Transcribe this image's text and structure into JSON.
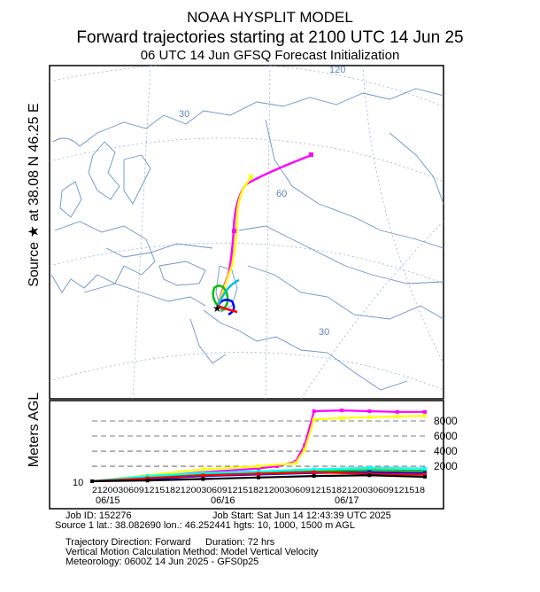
{
  "header": {
    "model": "NOAA HYSPLIT MODEL",
    "title": "Forward trajectories starting at 2100 UTC 14 Jun 25",
    "subtitle": "06 UTC 14 Jun    GFSQ  Forecast Initialization"
  },
  "side_label": "Source ★ at  38.08 N   46.25 E",
  "map": {
    "grid_labels": [
      "120",
      "30",
      "60",
      "30"
    ],
    "colors": {
      "coast": "#6b93c7",
      "grid": "#9ab3d3",
      "frame": "#000000"
    }
  },
  "chart_data": {
    "type": "line",
    "ylabel": "Meters AGL",
    "y_ticks": [
      "8000",
      "6000",
      "4000",
      "2000"
    ],
    "y_min_label": "10",
    "x_day_labels": [
      "06/15",
      "06/16",
      "06/17"
    ],
    "x_hour_labels": "2120030609121518212003060912151821200306091215182120030609121518",
    "ylim": [
      10,
      10000
    ],
    "x_range_hours": [
      0,
      72
    ],
    "series": [
      {
        "color": "#ff00ff",
        "x": [
          0,
          12,
          24,
          36,
          40,
          44,
          46,
          48,
          54,
          60,
          66,
          72
        ],
        "y": [
          10,
          600,
          1200,
          1700,
          2000,
          2600,
          4800,
          9300,
          9400,
          9300,
          9200,
          9200
        ]
      },
      {
        "color": "#ffff00",
        "x": [
          0,
          12,
          24,
          36,
          44,
          46,
          48,
          54,
          60,
          66,
          72
        ],
        "y": [
          10,
          800,
          1600,
          2000,
          2400,
          4200,
          8200,
          8400,
          8500,
          8600,
          8700
        ]
      },
      {
        "color": "#00c000",
        "x": [
          0,
          12,
          24,
          36,
          48,
          60,
          72
        ],
        "y": [
          10,
          500,
          900,
          1100,
          1300,
          1500,
          1400
        ]
      },
      {
        "color": "#0000ff",
        "x": [
          0,
          12,
          24,
          36,
          48,
          60,
          72
        ],
        "y": [
          10,
          300,
          700,
          900,
          1100,
          1200,
          1100
        ]
      },
      {
        "color": "#00ffff",
        "x": [
          0,
          12,
          24,
          36,
          48,
          60,
          72
        ],
        "y": [
          10,
          700,
          1100,
          1300,
          1600,
          1800,
          1700
        ]
      },
      {
        "color": "#ff0000",
        "x": [
          0,
          12,
          24,
          36,
          48,
          60,
          72
        ],
        "y": [
          10,
          400,
          800,
          1000,
          1200,
          1000,
          900
        ]
      },
      {
        "color": "#000000",
        "x": [
          0,
          12,
          24,
          36,
          48,
          60,
          72
        ],
        "y": [
          10,
          100,
          300,
          500,
          700,
          800,
          600
        ]
      }
    ]
  },
  "info": {
    "job_id": "Job ID: 152276",
    "job_start": "Job Start: Sat Jun 14 12:43:39 UTC 2025",
    "source": "Source 1 lat.: 38.082690  lon.: 46.252441   hgts: 10, 1000, 1500 m AGL",
    "direction": "Trajectory Direction: Forward",
    "duration": "Duration: 72 hrs",
    "vertical": "Vertical Motion Calculation Method:         Model Vertical Velocity",
    "met": "Meteorology: 0600Z 14 Jun 2025 - GFS0p25"
  }
}
